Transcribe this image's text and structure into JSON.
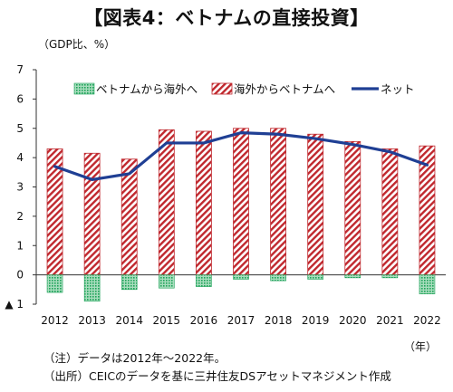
{
  "title": "【図表4：ベトナムの直接投資】",
  "unit_label": "（GDP比、%）",
  "x_unit_label": "（年）",
  "negative_marker": "▲",
  "notes": {
    "note": "（注）データは2012年～2022年。",
    "source": "（出所）CEICのデータを基に三井住友DSアセットマネジメント作成"
  },
  "colors": {
    "inward": "#1fa35a",
    "outward": "#c0282e",
    "net": "#1f3f94"
  },
  "chart_data": {
    "type": "bar",
    "categories": [
      "2012",
      "2013",
      "2014",
      "2015",
      "2016",
      "2017",
      "2018",
      "2019",
      "2020",
      "2021",
      "2022"
    ],
    "ylim": [
      -1,
      7
    ],
    "yticks": [
      0,
      1,
      2,
      3,
      4,
      5,
      6,
      7
    ],
    "grid": false,
    "legend_position": "top",
    "series": [
      {
        "name": "ベトナムから海外へ",
        "type": "bar",
        "values": [
          -0.6,
          -0.9,
          -0.5,
          -0.45,
          -0.4,
          -0.15,
          -0.2,
          -0.15,
          -0.1,
          -0.1,
          -0.65
        ]
      },
      {
        "name": "海外からベトナムへ",
        "type": "bar",
        "values": [
          4.3,
          4.15,
          3.95,
          4.95,
          4.9,
          5.0,
          5.0,
          4.8,
          4.55,
          4.3,
          4.4
        ]
      },
      {
        "name": "ネット",
        "type": "line",
        "values": [
          3.7,
          3.25,
          3.45,
          4.5,
          4.5,
          4.85,
          4.8,
          4.65,
          4.45,
          4.2,
          3.75
        ]
      }
    ]
  }
}
